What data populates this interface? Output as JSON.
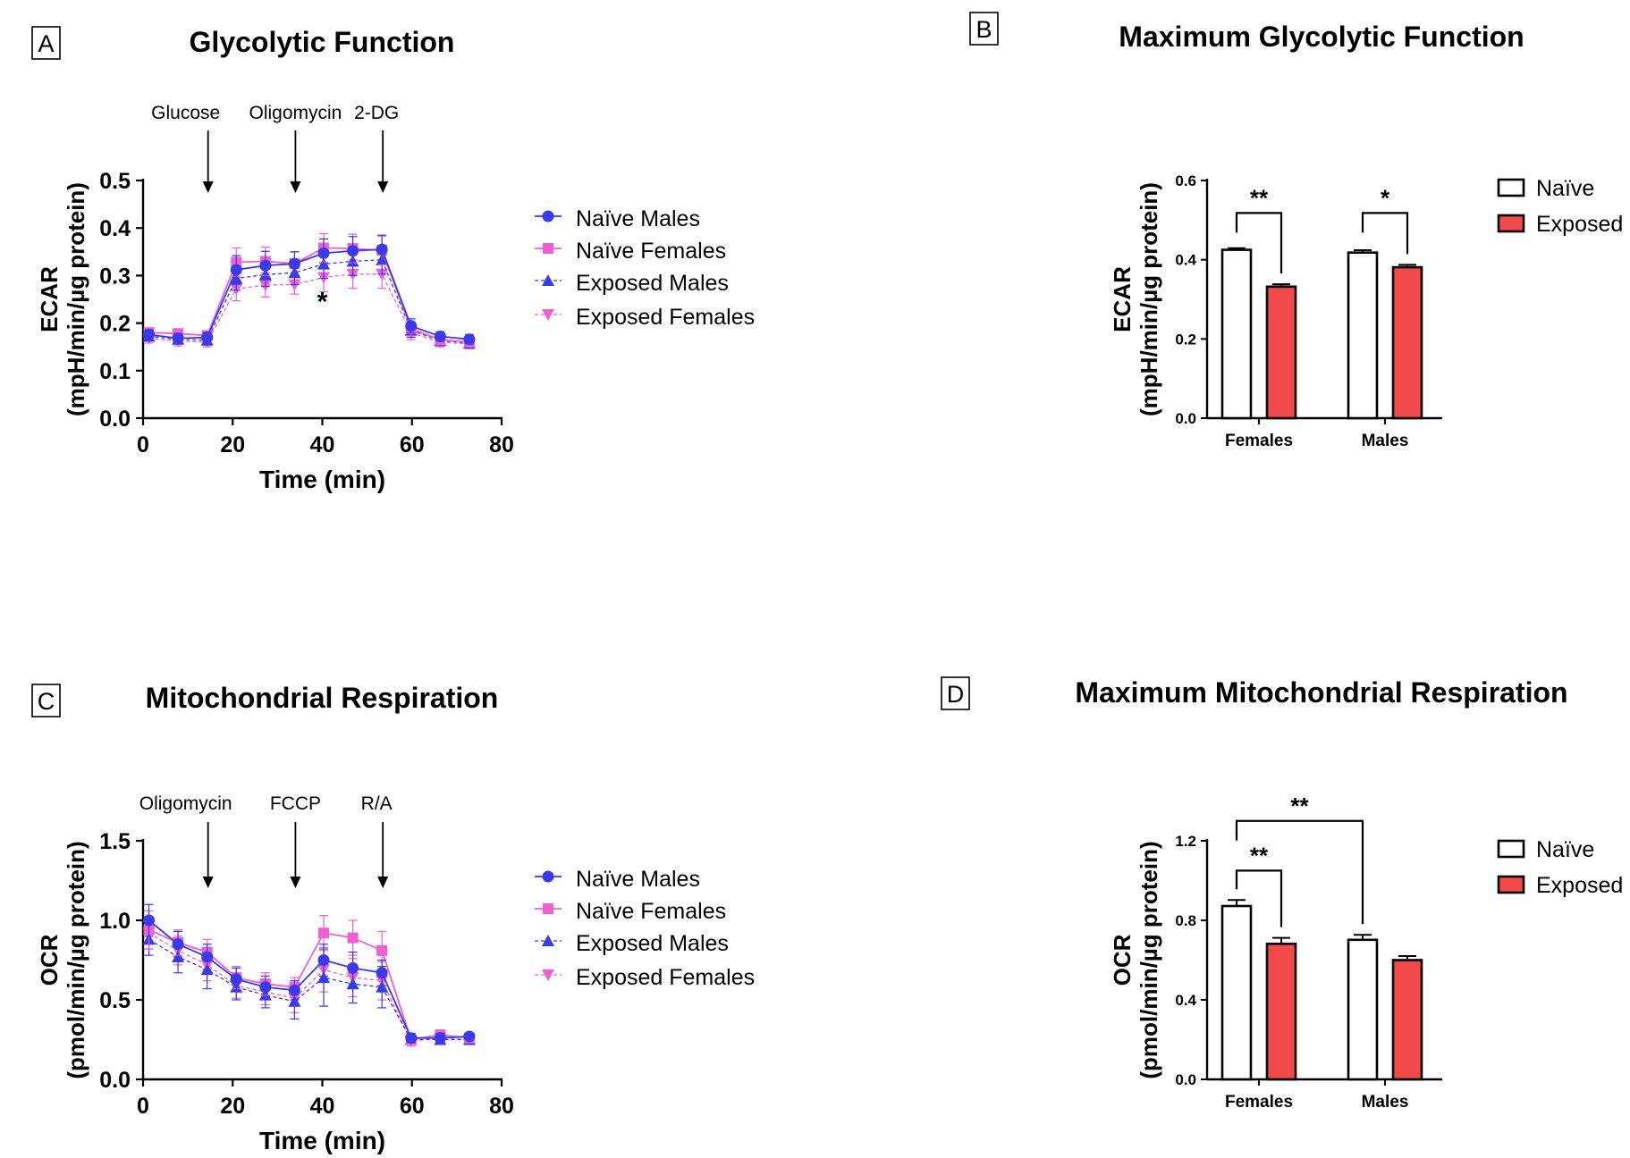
{
  "colors": {
    "naive_male": "#3a3ae8",
    "naive_female": "#ee5fcf",
    "bar_naive": "#ffffff",
    "bar_exposed": "#f24a4a",
    "axis": "#000000"
  },
  "chart_data": [
    {
      "panel": "A",
      "type": "line",
      "title": "Glycolytic Function",
      "xlabel": "Time (min)",
      "ylabel_line1": "ECAR",
      "ylabel_line2": "(mpH/min/µg protein)",
      "xlim": [
        0,
        80
      ],
      "ylim": [
        0,
        0.5
      ],
      "xticks": [
        0,
        20,
        40,
        60,
        80
      ],
      "xtick_labels": [
        "0",
        "20",
        "40",
        "60",
        "80"
      ],
      "yticks": [
        0,
        0.1,
        0.2,
        0.3,
        0.4,
        0.5
      ],
      "ytick_labels": [
        "0.0",
        "0.1",
        "0.2",
        "0.3",
        "0.4",
        "0.5"
      ],
      "injections": [
        {
          "label": "Glucose",
          "x": 14.5
        },
        {
          "label": "Oligomycin",
          "x": 34
        },
        {
          "label": "2-DG",
          "x": 53.5
        }
      ],
      "significance": [
        {
          "label": "*",
          "x": 40,
          "y": 0.26
        }
      ],
      "x": [
        1.3,
        7.8,
        14.3,
        20.8,
        27.3,
        33.8,
        40.3,
        46.8,
        53.3,
        59.8,
        66.3,
        72.8
      ],
      "series": [
        {
          "name": "Naïve Males",
          "color": "#3a3ae8",
          "marker": "circle",
          "dashed": false,
          "values": [
            0.176,
            0.168,
            0.17,
            0.312,
            0.321,
            0.325,
            0.347,
            0.352,
            0.355,
            0.194,
            0.172,
            0.166
          ],
          "errors": [
            0.01,
            0.01,
            0.01,
            0.03,
            0.03,
            0.025,
            0.03,
            0.03,
            0.03,
            0.015,
            0.01,
            0.01
          ]
        },
        {
          "name": "Naïve Females",
          "color": "#ee5fcf",
          "marker": "square",
          "dashed": false,
          "values": [
            0.18,
            0.178,
            0.174,
            0.328,
            0.33,
            0.325,
            0.358,
            0.357,
            0.353,
            0.188,
            0.165,
            0.16
          ],
          "errors": [
            0.01,
            0.01,
            0.01,
            0.03,
            0.03,
            0.025,
            0.03,
            0.03,
            0.03,
            0.015,
            0.01,
            0.01
          ]
        },
        {
          "name": "Exposed Males",
          "color": "#3a3ae8",
          "marker": "triangle-up",
          "dashed": true,
          "values": [
            0.172,
            0.166,
            0.164,
            0.294,
            0.302,
            0.306,
            0.324,
            0.33,
            0.333,
            0.185,
            0.163,
            0.158
          ],
          "errors": [
            0.01,
            0.01,
            0.01,
            0.025,
            0.025,
            0.025,
            0.03,
            0.03,
            0.03,
            0.015,
            0.01,
            0.01
          ]
        },
        {
          "name": "Exposed Females",
          "color": "#ee5fcf",
          "marker": "triangle-down",
          "dashed": true,
          "values": [
            0.168,
            0.162,
            0.16,
            0.272,
            0.28,
            0.281,
            0.296,
            0.303,
            0.303,
            0.18,
            0.16,
            0.156
          ],
          "errors": [
            0.01,
            0.01,
            0.01,
            0.025,
            0.025,
            0.02,
            0.03,
            0.03,
            0.03,
            0.015,
            0.01,
            0.01
          ]
        }
      ]
    },
    {
      "panel": "B",
      "type": "bar",
      "title": "Maximum Glycolytic Function",
      "xlabel": "",
      "ylabel_line1": "ECAR",
      "ylabel_line2": "(mpH/min/µg protein)",
      "ylim": [
        0,
        0.6
      ],
      "yticks": [
        0,
        0.2,
        0.4,
        0.6
      ],
      "ytick_labels": [
        "0.0",
        "0.2",
        "0.4",
        "0.6"
      ],
      "categories": [
        "Females",
        "Males"
      ],
      "series": [
        {
          "name": "Naïve",
          "color": "#ffffff",
          "values": [
            0.425,
            0.418
          ],
          "errors": [
            0.004,
            0.006
          ]
        },
        {
          "name": "Exposed",
          "color": "#f24a4a",
          "values": [
            0.332,
            0.381
          ],
          "errors": [
            0.006,
            0.006
          ]
        }
      ],
      "brackets": [
        {
          "label": "**",
          "from": [
            0,
            0
          ],
          "to": [
            0,
            1
          ],
          "y": 0.518
        },
        {
          "label": "*",
          "from": [
            1,
            0
          ],
          "to": [
            1,
            1
          ],
          "y": 0.518
        }
      ]
    },
    {
      "panel": "C",
      "type": "line",
      "title": "Mitochondrial  Respiration",
      "xlabel": "Time (min)",
      "ylabel_line1": "OCR",
      "ylabel_line2": "(pmol/min/µg protein)",
      "xlim": [
        0,
        80
      ],
      "ylim": [
        0,
        1.5
      ],
      "xticks": [
        0,
        20,
        40,
        60,
        80
      ],
      "xtick_labels": [
        "0",
        "20",
        "40",
        "60",
        "80"
      ],
      "yticks": [
        0,
        0.5,
        1.0,
        1.5
      ],
      "ytick_labels": [
        "0.0",
        "0.5",
        "1.0",
        "1.5"
      ],
      "injections": [
        {
          "label": "Oligomycin",
          "x": 14.5
        },
        {
          "label": "FCCP",
          "x": 34
        },
        {
          "label": "R/A",
          "x": 53.5
        }
      ],
      "significance": [],
      "x": [
        1.3,
        7.8,
        14.3,
        20.8,
        27.3,
        33.8,
        40.3,
        46.8,
        53.3,
        59.8,
        66.3,
        72.8
      ],
      "series": [
        {
          "name": "Naïve Males",
          "color": "#3a3ae8",
          "marker": "circle",
          "dashed": false,
          "values": [
            1.0,
            0.85,
            0.77,
            0.63,
            0.58,
            0.56,
            0.75,
            0.7,
            0.67,
            0.26,
            0.26,
            0.27
          ],
          "errors": [
            0.1,
            0.08,
            0.08,
            0.07,
            0.07,
            0.06,
            0.1,
            0.1,
            0.08,
            0.03,
            0.03,
            0.02
          ]
        },
        {
          "name": "Naïve Females",
          "color": "#ee5fcf",
          "marker": "square",
          "dashed": false,
          "values": [
            0.94,
            0.86,
            0.8,
            0.64,
            0.6,
            0.58,
            0.92,
            0.89,
            0.81,
            0.25,
            0.28,
            0.26
          ],
          "errors": [
            0.12,
            0.08,
            0.08,
            0.07,
            0.07,
            0.06,
            0.11,
            0.11,
            0.12,
            0.03,
            0.03,
            0.02
          ]
        },
        {
          "name": "Exposed Males",
          "color": "#3a3ae8",
          "marker": "triangle-up",
          "dashed": true,
          "values": [
            0.88,
            0.77,
            0.69,
            0.58,
            0.53,
            0.49,
            0.64,
            0.6,
            0.58,
            0.25,
            0.25,
            0.25
          ],
          "errors": [
            0.1,
            0.1,
            0.12,
            0.08,
            0.08,
            0.11,
            0.18,
            0.12,
            0.13,
            0.03,
            0.03,
            0.02
          ]
        },
        {
          "name": "Exposed Females",
          "color": "#ee5fcf",
          "marker": "triangle-down",
          "dashed": true,
          "values": [
            0.92,
            0.81,
            0.72,
            0.59,
            0.55,
            0.51,
            0.69,
            0.64,
            0.62,
            0.24,
            0.26,
            0.25
          ],
          "errors": [
            0.1,
            0.09,
            0.1,
            0.08,
            0.08,
            0.09,
            0.14,
            0.12,
            0.12,
            0.03,
            0.03,
            0.02
          ]
        }
      ]
    },
    {
      "panel": "D",
      "type": "bar",
      "title": "Maximum Mitochondrial Respiration",
      "xlabel": "",
      "ylabel_line1": "OCR",
      "ylabel_line2": "(pmol/min/µg protein)",
      "ylim": [
        0,
        1.2
      ],
      "yticks": [
        0,
        0.4,
        0.8,
        1.2
      ],
      "ytick_labels": [
        "0.0",
        "0.4",
        "0.8",
        "1.2"
      ],
      "categories": [
        "Females",
        "Males"
      ],
      "series": [
        {
          "name": "Naïve",
          "color": "#ffffff",
          "values": [
            0.872,
            0.702
          ],
          "errors": [
            0.03,
            0.025
          ]
        },
        {
          "name": "Exposed",
          "color": "#f24a4a",
          "values": [
            0.682,
            0.6
          ],
          "errors": [
            0.03,
            0.02
          ]
        }
      ],
      "brackets": [
        {
          "label": "**",
          "from": [
            0,
            0
          ],
          "to": [
            0,
            1
          ],
          "y": 1.05
        },
        {
          "label": "**",
          "from": [
            0,
            0
          ],
          "to": [
            1,
            0
          ],
          "y": 1.3
        }
      ]
    }
  ]
}
